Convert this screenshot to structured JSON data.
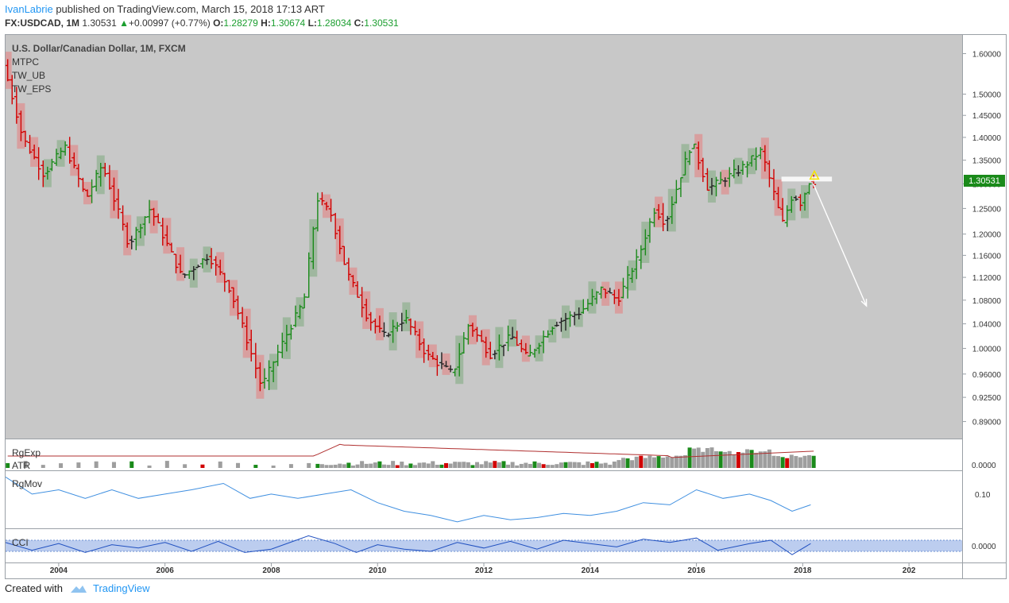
{
  "header": {
    "author": "IvanLabrie",
    "published": " published on TradingView.com, March 15, 2018 17:13 ART",
    "symbol": "FX:USDCAD, 1M",
    "last": "1.30531",
    "change": "+0.00997 (+0.77%)",
    "o_label": "O:",
    "o": "1.28279",
    "h_label": "H:",
    "h": "1.30674",
    "l_label": "L:",
    "l": "1.28034",
    "c_label": "C:",
    "c": "1.30531"
  },
  "legend": {
    "title": "U.S. Dollar/Canadian Dollar, 1M, FXCM",
    "studies": [
      "MTPC",
      "TW_UB",
      "TW_EPS"
    ]
  },
  "panes": {
    "volatility_label_1": "RgExp",
    "volatility_label_2": "ATR",
    "volatility_zero": "0.0000",
    "momentum_label": "RgMov",
    "momentum_tick": "0.10",
    "cci_label": "CCI",
    "cci_zero": "0.0000"
  },
  "price_badge": "1.30531",
  "footer": {
    "created": "Created with",
    "brand": "TradingView"
  },
  "colors": {
    "up": "#1a8a1a",
    "down": "#d10000",
    "neutral": "#222222",
    "accent": "#2196f3",
    "badge": "#1a8a1a",
    "bg": "#c8c8c8",
    "box_up": "#9ab59a",
    "box_down": "#d99a9a"
  },
  "chart_data": {
    "type": "ohlc",
    "title": "U.S. Dollar/Canadian Dollar, 1M, FXCM",
    "x_ticks": [
      "2004",
      "2006",
      "2008",
      "2010",
      "2012",
      "2014",
      "2016",
      "2018",
      "202"
    ],
    "y_ticks": [
      "1.60000",
      "1.50000",
      "1.45000",
      "1.40000",
      "1.35000",
      "1.30000",
      "1.25000",
      "1.20000",
      "1.16000",
      "1.12000",
      "1.08000",
      "1.04000",
      "1.00000",
      "0.96000",
      "0.92500",
      "0.89000"
    ],
    "y_log": true,
    "ylim": [
      0.875,
      1.64
    ],
    "xlim": [
      2003.0,
      2021.0
    ],
    "last_price": 1.30531,
    "anchors": [
      [
        2003.05,
        1.57
      ],
      [
        2003.4,
        1.4
      ],
      [
        2003.8,
        1.32
      ],
      [
        2004.2,
        1.38
      ],
      [
        2004.6,
        1.27
      ],
      [
        2004.9,
        1.34
      ],
      [
        2005.4,
        1.18
      ],
      [
        2005.8,
        1.25
      ],
      [
        2006.4,
        1.12
      ],
      [
        2006.9,
        1.16
      ],
      [
        2007.3,
        1.1
      ],
      [
        2007.9,
        0.94
      ],
      [
        2008.3,
        1.01
      ],
      [
        2008.7,
        1.08
      ],
      [
        2008.95,
        1.27
      ],
      [
        2009.2,
        1.24
      ],
      [
        2009.5,
        1.13
      ],
      [
        2009.9,
        1.05
      ],
      [
        2010.2,
        1.02
      ],
      [
        2010.6,
        1.05
      ],
      [
        2011.0,
        0.99
      ],
      [
        2011.5,
        0.96
      ],
      [
        2011.8,
        1.04
      ],
      [
        2012.2,
        0.99
      ],
      [
        2012.6,
        1.02
      ],
      [
        2012.9,
        0.985
      ],
      [
        2013.4,
        1.04
      ],
      [
        2013.9,
        1.06
      ],
      [
        2014.3,
        1.1
      ],
      [
        2014.6,
        1.08
      ],
      [
        2015.0,
        1.16
      ],
      [
        2015.3,
        1.25
      ],
      [
        2015.5,
        1.22
      ],
      [
        2016.0,
        1.39
      ],
      [
        2016.3,
        1.29
      ],
      [
        2016.9,
        1.33
      ],
      [
        2017.3,
        1.37
      ],
      [
        2017.7,
        1.22
      ],
      [
        2017.9,
        1.28
      ],
      [
        2018.05,
        1.26
      ],
      [
        2018.2,
        1.305
      ]
    ],
    "forecast": {
      "start": [
        2018.2,
        1.3
      ],
      "end": [
        2019.2,
        1.07
      ],
      "level": 1.31
    },
    "rgmov": [
      [
        2003.0,
        0.15
      ],
      [
        2003.5,
        0.11
      ],
      [
        2004.0,
        0.12
      ],
      [
        2004.5,
        0.1
      ],
      [
        2005.0,
        0.12
      ],
      [
        2005.5,
        0.1
      ],
      [
        2006.0,
        0.11
      ],
      [
        2006.5,
        0.12
      ],
      [
        2007.1,
        0.135
      ],
      [
        2007.6,
        0.1
      ],
      [
        2008.0,
        0.11
      ],
      [
        2008.5,
        0.1
      ],
      [
        2009.0,
        0.11
      ],
      [
        2009.5,
        0.12
      ],
      [
        2010.0,
        0.09
      ],
      [
        2010.5,
        0.07
      ],
      [
        2011.0,
        0.06
      ],
      [
        2011.5,
        0.045
      ],
      [
        2012.0,
        0.06
      ],
      [
        2012.5,
        0.05
      ],
      [
        2013.0,
        0.055
      ],
      [
        2013.5,
        0.065
      ],
      [
        2014.0,
        0.06
      ],
      [
        2014.5,
        0.07
      ],
      [
        2015.0,
        0.09
      ],
      [
        2015.5,
        0.085
      ],
      [
        2016.0,
        0.12
      ],
      [
        2016.5,
        0.1
      ],
      [
        2017.0,
        0.11
      ],
      [
        2017.4,
        0.095
      ],
      [
        2017.8,
        0.07
      ],
      [
        2018.15,
        0.085
      ]
    ],
    "cci": [
      [
        2003.0,
        0.3
      ],
      [
        2003.5,
        -0.4
      ],
      [
        2004.0,
        0.2
      ],
      [
        2004.5,
        -0.6
      ],
      [
        2005.0,
        0.1
      ],
      [
        2005.5,
        -0.2
      ],
      [
        2006.0,
        0.3
      ],
      [
        2006.5,
        -0.5
      ],
      [
        2007.0,
        0.4
      ],
      [
        2007.5,
        -0.6
      ],
      [
        2008.0,
        -0.3
      ],
      [
        2008.7,
        0.9
      ],
      [
        2009.2,
        0.2
      ],
      [
        2009.6,
        -0.6
      ],
      [
        2010.0,
        0.1
      ],
      [
        2010.5,
        -0.3
      ],
      [
        2011.0,
        -0.5
      ],
      [
        2011.5,
        0.3
      ],
      [
        2012.0,
        -0.2
      ],
      [
        2012.5,
        0.4
      ],
      [
        2013.0,
        -0.3
      ],
      [
        2013.5,
        0.5
      ],
      [
        2014.0,
        0.2
      ],
      [
        2014.5,
        -0.1
      ],
      [
        2015.0,
        0.6
      ],
      [
        2015.5,
        0.3
      ],
      [
        2016.0,
        0.7
      ],
      [
        2016.4,
        -0.4
      ],
      [
        2017.0,
        0.2
      ],
      [
        2017.4,
        0.5
      ],
      [
        2017.8,
        -0.8
      ],
      [
        2018.15,
        0.2
      ]
    ]
  }
}
